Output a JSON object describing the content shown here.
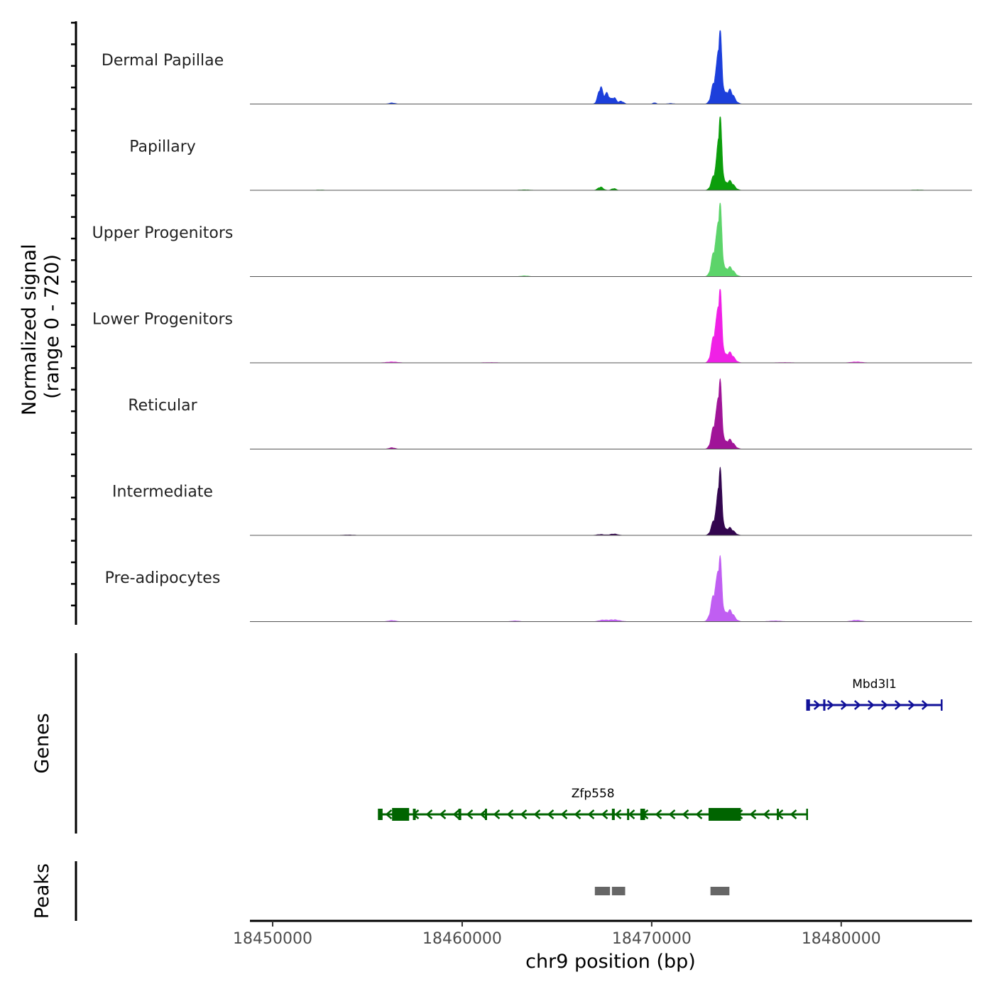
{
  "chart_data": {
    "type": "area",
    "title": "",
    "chromosome": "chr9",
    "xlabel": "chr9 position (bp)",
    "xlim": [
      18448800,
      18486900
    ],
    "x_ticks": [
      18450000,
      18460000,
      18470000,
      18480000
    ],
    "x_tick_labels": [
      "18450000",
      "18460000",
      "18470000",
      "18480000"
    ],
    "coverage_ylabel_line1": "Normalized signal",
    "coverage_ylabel_line2": "(range 0 - 720)",
    "ylim": [
      0,
      720
    ],
    "genes_ylabel": "Genes",
    "peaks_ylabel": "Peaks",
    "series": [
      {
        "name": "Dermal Papillae",
        "color": "#1c3fdb",
        "peaks": [
          [
            18473600,
            700,
            110
          ],
          [
            18473330,
            260,
            160
          ],
          [
            18474100,
            150,
            220
          ],
          [
            18467300,
            180,
            130
          ],
          [
            18467650,
            110,
            110
          ],
          [
            18468000,
            70,
            130
          ],
          [
            18468400,
            30,
            120
          ],
          [
            18470150,
            15,
            80
          ],
          [
            18456300,
            12,
            150
          ],
          [
            18452000,
            8,
            120
          ],
          [
            18471000,
            6,
            150
          ]
        ]
      },
      {
        "name": "Papillary",
        "color": "#0c9e0c",
        "peaks": [
          [
            18473600,
            720,
            110
          ],
          [
            18473330,
            180,
            160
          ],
          [
            18474100,
            100,
            220
          ],
          [
            18467300,
            35,
            140
          ],
          [
            18468000,
            20,
            120
          ],
          [
            18463300,
            5,
            300
          ],
          [
            18452500,
            3,
            300
          ],
          [
            18484000,
            4,
            300
          ]
        ]
      },
      {
        "name": "Upper Progenitors",
        "color": "#5cd46a",
        "peaks": [
          [
            18473600,
            690,
            110
          ],
          [
            18473330,
            300,
            160
          ],
          [
            18474100,
            100,
            220
          ],
          [
            18463300,
            8,
            200
          ]
        ]
      },
      {
        "name": "Lower Progenitors",
        "color": "#f020e6",
        "peaks": [
          [
            18473600,
            690,
            110
          ],
          [
            18473330,
            330,
            160
          ],
          [
            18474100,
            110,
            220
          ],
          [
            18456300,
            10,
            300
          ],
          [
            18480800,
            10,
            300
          ],
          [
            18461500,
            4,
            400
          ],
          [
            18477000,
            4,
            400
          ]
        ]
      },
      {
        "name": "Reticular",
        "color": "#a01498",
        "peaks": [
          [
            18473600,
            650,
            110
          ],
          [
            18473330,
            280,
            160
          ],
          [
            18474100,
            100,
            220
          ],
          [
            18456300,
            15,
            150
          ]
        ]
      },
      {
        "name": "Intermediate",
        "color": "#33064f",
        "peaks": [
          [
            18473600,
            650,
            110
          ],
          [
            18473330,
            180,
            160
          ],
          [
            18474100,
            80,
            220
          ],
          [
            18468000,
            15,
            200
          ],
          [
            18467300,
            10,
            200
          ],
          [
            18454000,
            5,
            300
          ]
        ]
      },
      {
        "name": "Pre-adipocytes",
        "color": "#c05ef2",
        "peaks": [
          [
            18473600,
            570,
            110
          ],
          [
            18473330,
            320,
            180
          ],
          [
            18474100,
            120,
            220
          ],
          [
            18468000,
            20,
            300
          ],
          [
            18467400,
            15,
            200
          ],
          [
            18456300,
            12,
            200
          ],
          [
            18480800,
            15,
            250
          ],
          [
            18462800,
            8,
            200
          ],
          [
            18476500,
            8,
            300
          ]
        ]
      }
    ],
    "genes": [
      {
        "name": "Mbd3l1",
        "strand": "+",
        "color": "#111199",
        "start": 18478200,
        "end": 18485300,
        "exons": [
          [
            18478200,
            18478350
          ],
          [
            18479050,
            18479150
          ]
        ]
      },
      {
        "name": "Zfp558",
        "strand": "-",
        "color": "#006400",
        "start": 18455600,
        "end": 18478200,
        "exons": [
          [
            18455600,
            18455800
          ],
          [
            18456300,
            18457200
          ],
          [
            18457400,
            18457550
          ],
          [
            18459800,
            18459950
          ],
          [
            18461200,
            18461300
          ],
          [
            18467900,
            18468050
          ],
          [
            18468700,
            18468800
          ],
          [
            18469400,
            18469650
          ],
          [
            18473000,
            18474700
          ],
          [
            18476600,
            18476700
          ]
        ]
      }
    ],
    "peaks": [
      {
        "start": 18467000,
        "end": 18467800
      },
      {
        "start": 18467900,
        "end": 18468600
      },
      {
        "start": 18473100,
        "end": 18474100
      }
    ]
  }
}
